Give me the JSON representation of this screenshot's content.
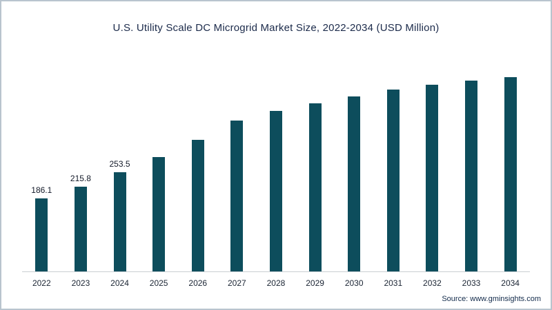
{
  "chart_data": {
    "type": "bar",
    "title": "U.S. Utility Scale DC Microgrid Market Size, 2022-2034 (USD Million)",
    "categories": [
      "2022",
      "2023",
      "2024",
      "2025",
      "2026",
      "2027",
      "2028",
      "2029",
      "2030",
      "2031",
      "2032",
      "2033",
      "2034"
    ],
    "values": [
      186.1,
      215.8,
      253.5,
      292,
      336,
      385,
      409,
      428,
      447,
      463,
      476,
      487,
      496
    ],
    "data_labels": [
      "186.1",
      "215.8",
      "253.5",
      null,
      null,
      null,
      null,
      null,
      null,
      null,
      null,
      null,
      null
    ],
    "xlabel": "",
    "ylabel": "",
    "ylim": [
      0,
      520
    ],
    "grid": false,
    "legend": "none",
    "bar_color": "#0d4d5c",
    "source": "Source: www.gminsights.com"
  }
}
